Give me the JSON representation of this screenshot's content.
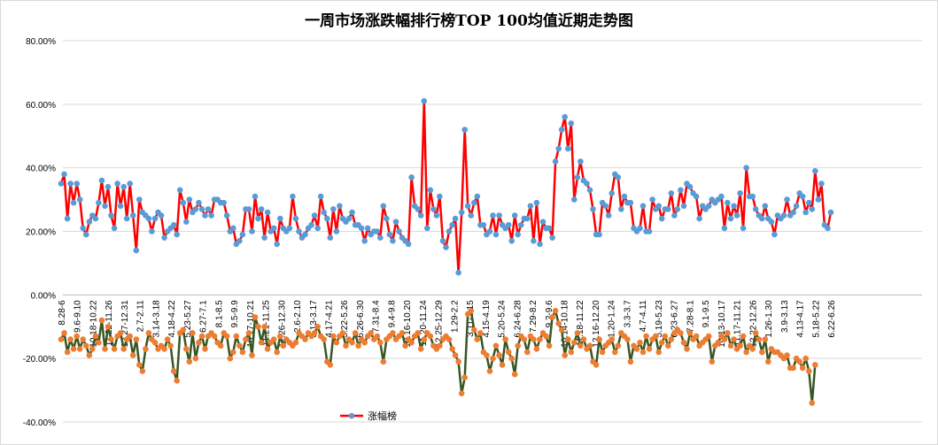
{
  "chart_data": {
    "type": "line",
    "title": "一周市场涨跌幅排行榜TOP 100均值近期走势图",
    "xlabel": "",
    "ylabel": "",
    "ylim": [
      -0.4,
      0.8
    ],
    "y_tick_labels": [
      "80.00%",
      "60.00%",
      "40.00%",
      "20.00%",
      "0.00%",
      "-20.00%",
      "-40.00%"
    ],
    "y_tick_values": [
      0.8,
      0.6,
      0.4,
      0.2,
      0.0,
      -0.2,
      -0.4
    ],
    "grid": true,
    "legend_position": "bottom",
    "x_tick_labels": [
      "8.28-6",
      "9.6-9.10",
      "10.18-10.22",
      "11.22-11.26",
      "12.27-12.31",
      "2.7-2.11",
      "3.14-3.18",
      "4.18-4.22",
      "5.23-5.27",
      "6.27-7.1",
      "8.1-8.5",
      "9.5-9.9",
      "10.17-10.21",
      "11.21-11.25",
      "12.26-12.30",
      "2.6-2.10",
      "3.13-3.17",
      "4.17-4.21",
      "5.22-5.26",
      "6.26-6.30",
      "7.31-8.4",
      "9.4-9.8",
      "10.16-10.20",
      "11.20-11.24",
      "12.25-12.29",
      "1.29-2.2",
      "3.11-3.15",
      "4.15-4.19",
      "5.20-5.24",
      "6.24-6.28",
      "7.29-8.2",
      "9.2-9.6",
      "10.14-10.18",
      "11.18-11.22",
      "12.16-12.20",
      "1.20-1.24",
      "3.3-3.7",
      "4.7-4.11",
      "5.19-5.23",
      "6.23-6.27",
      "7.28-8.1",
      "9.1-9.5",
      "10.13-10.17",
      "11.17-11.21",
      "12.22-12.26",
      "1.26-1.30",
      "3.9-3.13",
      "4.13-4.17",
      "5.18-5.22",
      "6.22-6.26"
    ],
    "series": [
      {
        "name": "涨幅榜",
        "color": "#ff0000",
        "marker_color": "#5b9bd5",
        "values": [
          0.35,
          0.38,
          0.24,
          0.35,
          0.29,
          0.35,
          0.3,
          0.21,
          0.19,
          0.23,
          0.25,
          0.24,
          0.29,
          0.36,
          0.28,
          0.34,
          0.25,
          0.21,
          0.35,
          0.28,
          0.34,
          0.24,
          0.35,
          0.25,
          0.14,
          0.3,
          0.26,
          0.25,
          0.24,
          0.2,
          0.24,
          0.26,
          0.25,
          0.18,
          0.2,
          0.21,
          0.22,
          0.19,
          0.33,
          0.29,
          0.23,
          0.3,
          0.26,
          0.27,
          0.29,
          0.27,
          0.25,
          0.27,
          0.25,
          0.3,
          0.3,
          0.29,
          0.29,
          0.25,
          0.2,
          0.21,
          0.16,
          0.17,
          0.19,
          0.27,
          0.27,
          0.2,
          0.31,
          0.24,
          0.27,
          0.18,
          0.26,
          0.2,
          0.21,
          0.16,
          0.24,
          0.21,
          0.2,
          0.21,
          0.31,
          0.24,
          0.2,
          0.18,
          0.19,
          0.21,
          0.22,
          0.25,
          0.21,
          0.31,
          0.26,
          0.24,
          0.18,
          0.27,
          0.2,
          0.28,
          0.24,
          0.23,
          0.24,
          0.26,
          0.22,
          0.22,
          0.21,
          0.17,
          0.21,
          0.19,
          0.2,
          0.2,
          0.18,
          0.28,
          0.24,
          0.19,
          0.17,
          0.23,
          0.2,
          0.18,
          0.17,
          0.16,
          0.37,
          0.28,
          0.27,
          0.25,
          0.61,
          0.21,
          0.33,
          0.27,
          0.25,
          0.31,
          0.17,
          0.15,
          0.2,
          0.22,
          0.24,
          0.07,
          0.26,
          0.52,
          0.28,
          0.25,
          0.29,
          0.31,
          0.22,
          0.22,
          0.19,
          0.2,
          0.25,
          0.19,
          0.25,
          0.22,
          0.21,
          0.22,
          0.17,
          0.25,
          0.19,
          0.22,
          0.24,
          0.24,
          0.28,
          0.17,
          0.29,
          0.16,
          0.23,
          0.21,
          0.21,
          0.18,
          0.42,
          0.46,
          0.52,
          0.56,
          0.46,
          0.54,
          0.3,
          0.37,
          0.42,
          0.36,
          0.35,
          0.33,
          0.27,
          0.19,
          0.19,
          0.29,
          0.28,
          0.25,
          0.32,
          0.38,
          0.37,
          0.27,
          0.31,
          0.29,
          0.29,
          0.21,
          0.2,
          0.21,
          0.28,
          0.2,
          0.2,
          0.3,
          0.27,
          0.28,
          0.24,
          0.27,
          0.27,
          0.32,
          0.25,
          0.27,
          0.33,
          0.28,
          0.35,
          0.34,
          0.32,
          0.31,
          0.24,
          0.28,
          0.27,
          0.28,
          0.3,
          0.29,
          0.3,
          0.31,
          0.21,
          0.29,
          0.24,
          0.28,
          0.25,
          0.32,
          0.21,
          0.4,
          0.31,
          0.31,
          0.27,
          0.25,
          0.24,
          0.28,
          0.24,
          0.23,
          0.19,
          0.25,
          0.24,
          0.25,
          0.3,
          0.25,
          0.26,
          0.28,
          0.32,
          0.31,
          0.26,
          0.29,
          0.27,
          0.39,
          0.3,
          0.35,
          0.22,
          0.21,
          0.26
        ]
      },
      {
        "name": "",
        "color": "#375623",
        "marker_color": "#ed7d31",
        "values": [
          -0.14,
          -0.12,
          -0.18,
          -0.14,
          -0.17,
          -0.13,
          -0.17,
          -0.14,
          -0.16,
          -0.19,
          -0.17,
          -0.13,
          -0.15,
          -0.08,
          -0.17,
          -0.1,
          -0.14,
          -0.17,
          -0.13,
          -0.12,
          -0.17,
          -0.14,
          -0.13,
          -0.19,
          -0.14,
          -0.22,
          -0.24,
          -0.17,
          -0.12,
          -0.14,
          -0.15,
          -0.17,
          -0.16,
          -0.17,
          -0.14,
          -0.16,
          -0.24,
          -0.27,
          -0.12,
          -0.11,
          -0.17,
          -0.21,
          -0.12,
          -0.2,
          -0.15,
          -0.13,
          -0.17,
          -0.13,
          -0.12,
          -0.13,
          -0.15,
          -0.16,
          -0.12,
          -0.13,
          -0.2,
          -0.18,
          -0.13,
          -0.16,
          -0.18,
          -0.14,
          -0.12,
          -0.19,
          -0.07,
          -0.1,
          -0.15,
          -0.1,
          -0.17,
          -0.15,
          -0.14,
          -0.18,
          -0.13,
          -0.16,
          -0.14,
          -0.15,
          -0.16,
          -0.15,
          -0.12,
          -0.13,
          -0.14,
          -0.12,
          -0.13,
          -0.12,
          -0.1,
          -0.13,
          -0.14,
          -0.21,
          -0.22,
          -0.13,
          -0.15,
          -0.13,
          -0.12,
          -0.16,
          -0.14,
          -0.15,
          -0.12,
          -0.16,
          -0.14,
          -0.15,
          -0.13,
          -0.12,
          -0.14,
          -0.13,
          -0.15,
          -0.21,
          -0.14,
          -0.13,
          -0.12,
          -0.14,
          -0.13,
          -0.12,
          -0.16,
          -0.14,
          -0.15,
          -0.13,
          -0.12,
          -0.17,
          -0.14,
          -0.12,
          -0.13,
          -0.16,
          -0.17,
          -0.16,
          -0.14,
          -0.13,
          -0.14,
          -0.17,
          -0.19,
          -0.21,
          -0.31,
          -0.26,
          -0.06,
          -0.05,
          -0.11,
          -0.14,
          -0.12,
          -0.18,
          -0.19,
          -0.24,
          -0.2,
          -0.16,
          -0.19,
          -0.22,
          -0.14,
          -0.18,
          -0.2,
          -0.25,
          -0.16,
          -0.13,
          -0.14,
          -0.18,
          -0.13,
          -0.14,
          -0.17,
          -0.14,
          -0.12,
          -0.13,
          -0.16,
          -0.07,
          -0.05,
          -0.09,
          -0.11,
          -0.19,
          -0.14,
          -0.18,
          -0.15,
          -0.12,
          -0.16,
          -0.14,
          -0.17,
          -0.16,
          -0.21,
          -0.22,
          -0.14,
          -0.18,
          -0.16,
          -0.15,
          -0.14,
          -0.18,
          -0.16,
          -0.12,
          -0.13,
          -0.14,
          -0.21,
          -0.16,
          -0.17,
          -0.15,
          -0.18,
          -0.13,
          -0.17,
          -0.14,
          -0.13,
          -0.18,
          -0.15,
          -0.13,
          -0.16,
          -0.14,
          -0.12,
          -0.11,
          -0.12,
          -0.15,
          -0.17,
          -0.12,
          -0.14,
          -0.13,
          -0.16,
          -0.15,
          -0.14,
          -0.13,
          -0.21,
          -0.16,
          -0.15,
          -0.13,
          -0.14,
          -0.12,
          -0.16,
          -0.14,
          -0.17,
          -0.16,
          -0.13,
          -0.18,
          -0.16,
          -0.17,
          -0.12,
          -0.14,
          -0.18,
          -0.14,
          -0.21,
          -0.17,
          -0.18,
          -0.18,
          -0.19,
          -0.2,
          -0.19,
          -0.23,
          -0.23,
          -0.2,
          -0.21,
          -0.23,
          -0.2,
          -0.24,
          -0.34,
          -0.22
        ]
      }
    ]
  }
}
